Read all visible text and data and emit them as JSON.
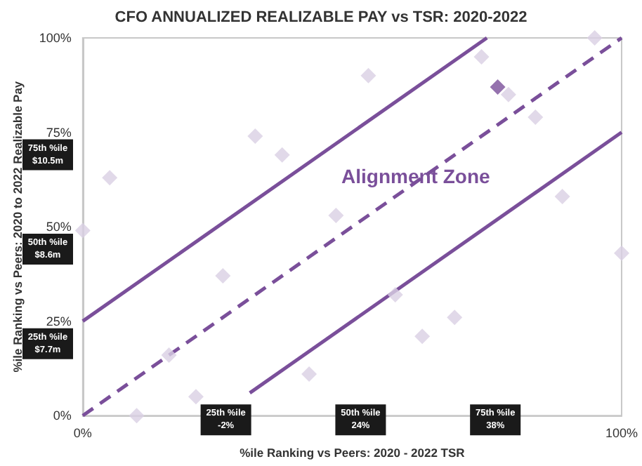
{
  "chart_data": {
    "type": "scatter",
    "title": "CFO ANNUALIZED REALIZABLE PAY vs TSR: 2020-2022",
    "xlabel": "%ile Ranking vs Peers: 2020 - 2022 TSR",
    "ylabel": "%ile Ranking vs Peers: 2020 to 2022 Realizable Pay",
    "xlim": [
      0,
      100
    ],
    "ylim": [
      0,
      100
    ],
    "xticks": [
      {
        "value": 0,
        "label": "0%"
      },
      {
        "value": 100,
        "label": "100%"
      }
    ],
    "yticks": [
      {
        "value": 0,
        "label": "0%"
      },
      {
        "value": 25,
        "label": "25%"
      },
      {
        "value": 50,
        "label": "50%"
      },
      {
        "value": 75,
        "label": "75%"
      },
      {
        "value": 100,
        "label": "100%"
      }
    ],
    "grid": false,
    "marker": "diamond",
    "series": [
      {
        "color": "#d9d0e3",
        "x": [
          0,
          5,
          10,
          16,
          21,
          26,
          32,
          37,
          42,
          47,
          53,
          58,
          63,
          69,
          74,
          77,
          79,
          84,
          89,
          95,
          100
        ],
        "values": [
          49,
          63,
          0,
          16,
          5,
          37,
          74,
          69,
          11,
          53,
          90,
          32,
          21,
          26,
          95,
          87,
          85,
          79,
          58,
          100,
          43
        ],
        "colors": [
          "#d9d0e3",
          "#d9d0e3",
          "#d9d0e3",
          "#d9d0e3",
          "#d9d0e3",
          "#d9d0e3",
          "#d9d0e3",
          "#d9d0e3",
          "#d9d0e3",
          "#d9d0e3",
          "#d9d0e3",
          "#d9d0e3",
          "#d9d0e3",
          "#d9d0e3",
          "#d9d0e3",
          "#7a4f9a",
          "#d9d0e3",
          "#d9d0e3",
          "#d9d0e3",
          "#d9d0e3",
          "#d9d0e3"
        ]
      },
      {
        "type": "line",
        "color": "#7a4f9a",
        "line_style": "solid",
        "marker": "none",
        "x": [
          0,
          75
        ],
        "values": [
          25,
          100
        ]
      },
      {
        "type": "line",
        "color": "#7a4f9a",
        "line_style": "dashed",
        "marker": "none",
        "x": [
          0,
          100
        ],
        "values": [
          0,
          100
        ]
      },
      {
        "type": "line",
        "color": "#7a4f9a",
        "line_style": "solid",
        "marker": "none",
        "x": [
          31,
          100
        ],
        "values": [
          6,
          75
        ]
      }
    ],
    "annotations": [
      "Alignment Zone",
      "75th %ile\n$10.5m",
      "50th %ile\n$8.6m",
      "25th %ile\n$7.7m",
      "25th %ile\n-2%",
      "50th %ile\n24%",
      "75th %ile\n38%"
    ]
  }
}
